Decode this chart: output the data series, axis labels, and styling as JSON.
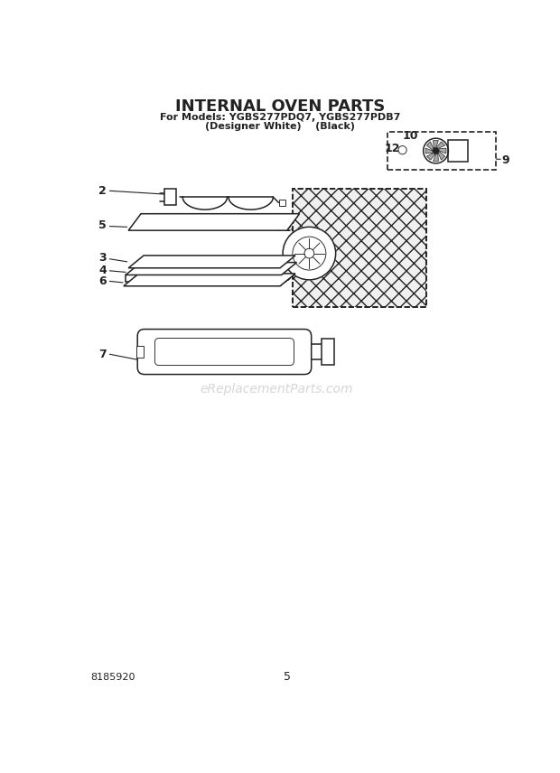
{
  "title": "INTERNAL OVEN PARTS",
  "subtitle1": "For Models: YGBS277PDQ7, YGBS277PDB7",
  "subtitle2": "(Designer White)    (Black)",
  "part_number": "8185920",
  "page_number": "5",
  "watermark": "eReplacementParts.com",
  "bg_color": "#ffffff",
  "line_color": "#222222",
  "lw_main": 1.1,
  "lw_thin": 0.65
}
